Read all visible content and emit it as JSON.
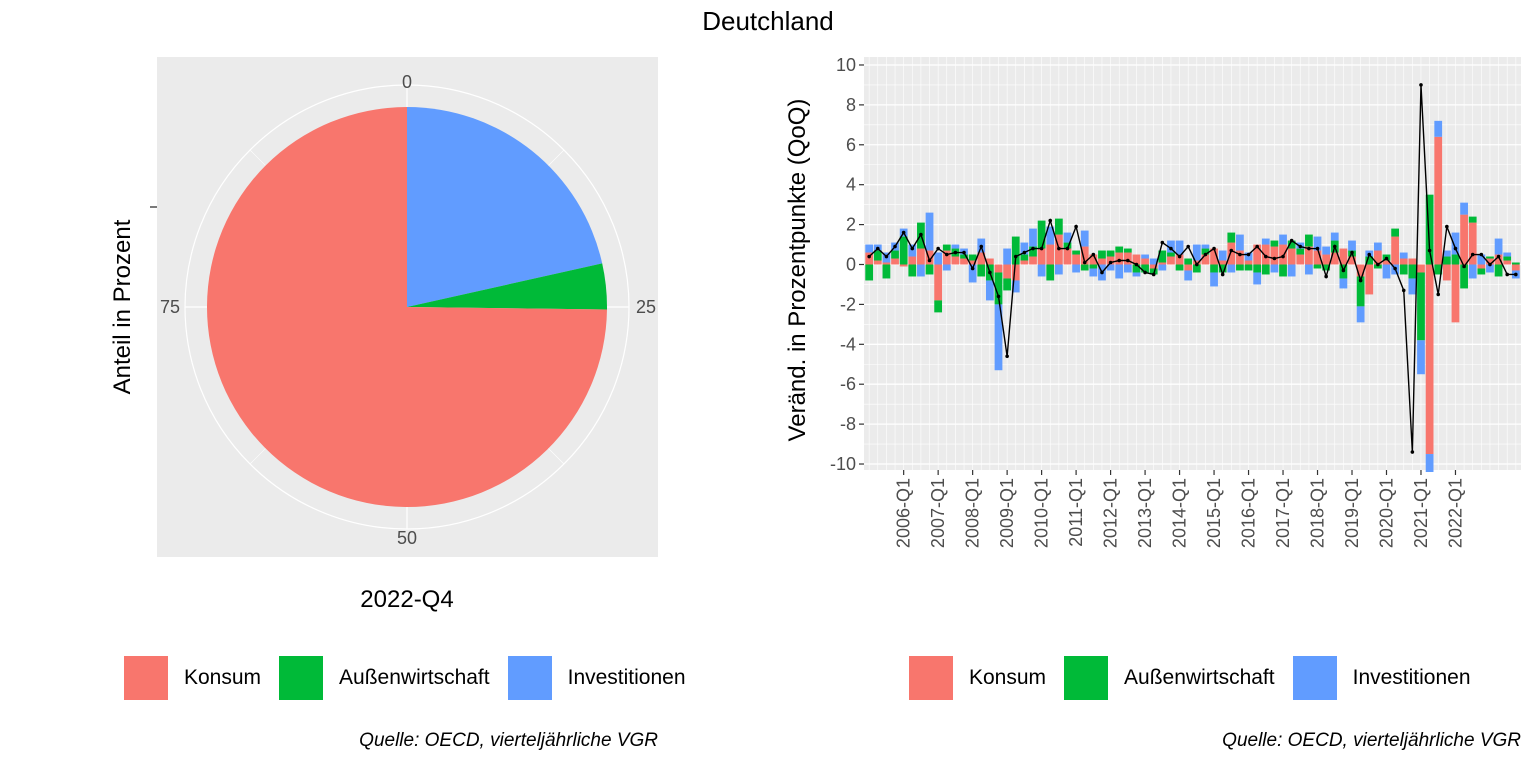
{
  "title": "Deutchland",
  "colors": {
    "Konsum": "#F8766D",
    "Außenwirtschaft": "#00BA38",
    "Investitionen": "#619CFF",
    "panel": "#EBEBEB",
    "grid": "#FFFFFF",
    "line": "#000000"
  },
  "legend_left": [
    {
      "name": "Konsum",
      "color_key": "Konsum"
    },
    {
      "name": "Außenwirtschaft",
      "color_key": "Außenwirtschaft"
    },
    {
      "name": "Investitionen",
      "color_key": "Investitionen"
    }
  ],
  "legend_right": [
    {
      "name": "Konsum",
      "color_key": "Konsum"
    },
    {
      "name": "Außenwirtschaft",
      "color_key": "Außenwirtschaft"
    },
    {
      "name": "Investitionen",
      "color_key": "Investitionen"
    }
  ],
  "caption_left": "Quelle: OECD, vierteljährliche VGR",
  "caption_right": "Quelle: OECD, vierteljährliche VGR",
  "chart_data": [
    {
      "type": "pie",
      "coord": "polar",
      "xlabel": "2022-Q4",
      "ylabel": "Anteil in Prozent",
      "theta_ticks": [
        "0",
        "25",
        "50",
        "75"
      ],
      "slices": [
        {
          "name": "Investitionen",
          "value": 21.5
        },
        {
          "name": "Außenwirtschaft",
          "value": 3.7
        },
        {
          "name": "Konsum",
          "value": 74.8
        }
      ]
    },
    {
      "type": "bar",
      "stacked": true,
      "ylabel": "Veränd. in Prozentpunkte (QoQ)",
      "ylim": [
        -10.3,
        10.4
      ],
      "yticks": [
        "-10",
        "-8",
        "-6",
        "-4",
        "-2",
        "0",
        "2",
        "4",
        "6",
        "8",
        "10"
      ],
      "x_start": "2005-Q1",
      "xticks": [
        "2006-Q1",
        "2007-Q1",
        "2008-Q1",
        "2009-Q1",
        "2010-Q1",
        "2011-Q1",
        "2012-Q1",
        "2013-Q1",
        "2014-Q1",
        "2015-Q1",
        "2016-Q1",
        "2017-Q1",
        "2018-Q1",
        "2019-Q1",
        "2020-Q1",
        "2021-Q1",
        "2022-Q1"
      ],
      "series": [
        {
          "name": "Konsum",
          "values": [
            0.6,
            0.2,
            0.1,
            0.3,
            -0.1,
            0.4,
            0.8,
            0.7,
            -1.8,
            0.7,
            0.4,
            0.3,
            0.2,
            0.6,
            0.3,
            -0.4,
            -0.7,
            -0.8,
            0.2,
            0.4,
            0.8,
            1.0,
            1.5,
            0.8,
            0.5,
            0.9,
            0.5,
            0.3,
            0.4,
            0.6,
            0.6,
            0.5,
            0.3,
            -0.2,
            0.1,
            0.4,
            0.5,
            -0.3,
            0.2,
            0.5,
            0.8,
            0.2,
            1.1,
            0.7,
            0.2,
            1.0,
            1.0,
            0.9,
            1.0,
            0.8,
            0.5,
            0.9,
            0.7,
            0.5,
            0.6,
            0.8,
            0.4,
            -0.6,
            -1.5,
            0.7,
            0.2,
            1.4,
            0.3,
            0.3,
            -0.4,
            -9.5,
            6.4,
            -0.8,
            -2.9,
            2.5,
            2.1,
            -0.2,
            0.3,
            0.5,
            0.2,
            -0.3
          ]
        },
        {
          "name": "Außenwirtschaft",
          "values": [
            -0.8,
            0.5,
            -0.7,
            0.4,
            1.4,
            -0.6,
            1.3,
            -0.5,
            -0.6,
            0.3,
            0.4,
            0.2,
            0.3,
            -0.6,
            -0.8,
            -1.6,
            -0.6,
            1.4,
            0.3,
            0.5,
            1.4,
            -0.8,
            0.8,
            0.3,
            0.2,
            -0.3,
            -0.2,
            0.4,
            0.3,
            0.3,
            0.2,
            -0.4,
            -0.4,
            -0.3,
            0.6,
            0.2,
            -0.3,
            0.3,
            -0.4,
            0.3,
            -0.4,
            -0.4,
            0.5,
            -0.3,
            -0.3,
            -0.4,
            -0.5,
            0.3,
            -0.6,
            0.4,
            0.3,
            0.6,
            -0.2,
            -0.3,
            0.6,
            -0.7,
            0.3,
            -1.5,
            0.4,
            -0.2,
            0.3,
            0.4,
            -0.5,
            -0.7,
            -3.4,
            3.5,
            -0.5,
            0.4,
            0.5,
            -1.2,
            0.3,
            -0.3,
            0.1,
            -0.6,
            0.2,
            0.1
          ]
        },
        {
          "name": "Investitionen",
          "values": [
            0.4,
            0.3,
            0.5,
            0.4,
            0.4,
            0.6,
            -0.6,
            1.9,
            0.6,
            -0.3,
            0.2,
            0.3,
            -0.9,
            0.7,
            -1.0,
            -3.3,
            0.8,
            -0.6,
            0.6,
            0.9,
            -0.6,
            0.9,
            -0.5,
            0.5,
            -0.4,
            0.8,
            -0.4,
            -0.8,
            -0.3,
            -0.7,
            -0.4,
            -0.2,
            0.2,
            0.3,
            -0.3,
            0.6,
            0.7,
            -0.5,
            0.8,
            0.2,
            -0.7,
            0.5,
            -0.4,
            0.8,
            0.4,
            -0.6,
            0.3,
            -0.4,
            0.5,
            -0.6,
            0.3,
            -0.5,
            0.7,
            0.4,
            0.4,
            -0.5,
            0.5,
            -0.8,
            0.3,
            0.4,
            -0.7,
            -0.5,
            0.3,
            -0.8,
            -1.7,
            -0.9,
            0.8,
            0.3,
            1.1,
            0.6,
            -0.7,
            0.5,
            -0.4,
            0.8,
            0.2,
            -0.4
          ]
        },
        {
          "name": "Gesamt",
          "values": [
            0.4,
            0.8,
            0.4,
            0.9,
            1.6,
            0.8,
            1.5,
            0.2,
            0.8,
            0.5,
            0.6,
            0.6,
            -0.2,
            0.9,
            -0.4,
            -1.6,
            -4.6,
            0.4,
            0.6,
            0.8,
            0.8,
            2.2,
            0.8,
            0.8,
            1.9,
            0.1,
            0.5,
            -0.4,
            0.1,
            0.2,
            0.2,
            0.0,
            -0.4,
            -0.5,
            1.1,
            0.8,
            0.4,
            0.9,
            0.0,
            0.5,
            0.8,
            -0.5,
            0.7,
            0.5,
            0.5,
            0.9,
            0.4,
            0.3,
            0.4,
            1.2,
            0.9,
            0.8,
            0.8,
            -0.6,
            0.9,
            -0.3,
            0.6,
            -0.8,
            0.5,
            0.0,
            0.3,
            -0.2,
            -1.3,
            -9.4,
            9.0,
            0.7,
            -1.5,
            1.9,
            0.8,
            -0.1,
            0.5,
            0.5,
            0.0,
            0.4,
            -0.5,
            -0.5
          ]
        }
      ]
    }
  ]
}
